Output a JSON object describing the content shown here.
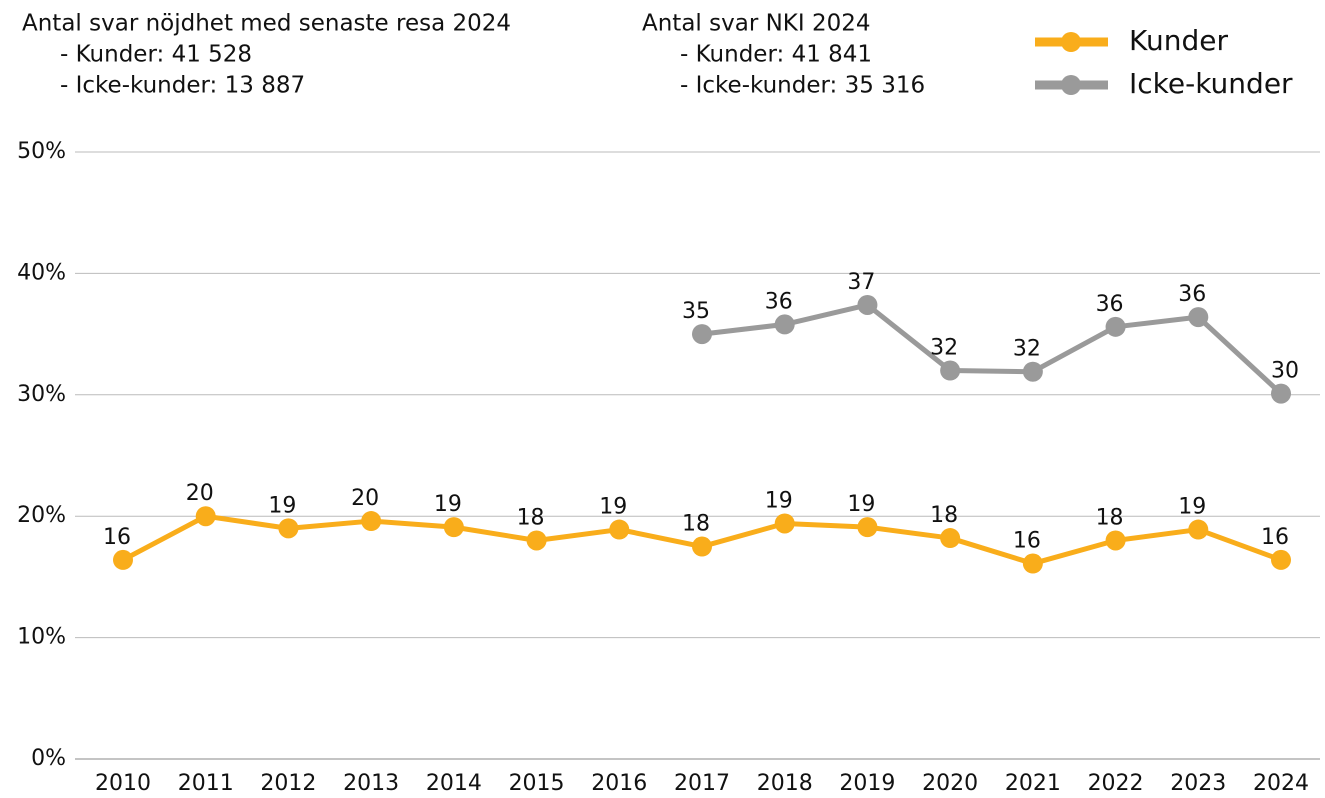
{
  "chart_data": {
    "type": "line",
    "annotations": [
      [
        "Antal svar nöjdhet med senaste resa 2024",
        "- Kunder: 41 528",
        "- Icke-kunder: 13 887"
      ],
      [
        "Antal svar NKI 2024",
        "- Kunder: 41 841",
        "- Icke-kunder: 35 316"
      ]
    ],
    "categories": [
      "2010",
      "2011",
      "2012",
      "2013",
      "2014",
      "2015",
      "2016",
      "2017",
      "2018",
      "2019",
      "2020",
      "2021",
      "2022",
      "2023",
      "2024"
    ],
    "series": [
      {
        "name": "Kunder",
        "color": "#f9ad1b",
        "values": [
          16.4,
          20.0,
          19.0,
          19.6,
          19.1,
          18.0,
          18.9,
          17.5,
          19.4,
          19.1,
          18.2,
          16.1,
          18.0,
          18.9,
          16.4
        ],
        "value_labels": [
          "16",
          "20",
          "19",
          "20",
          "19",
          "18",
          "19",
          "18",
          "19",
          "19",
          "18",
          "16",
          "18",
          "19",
          "16"
        ]
      },
      {
        "name": "Icke-kunder",
        "color": "#9a9a9a",
        "values": [
          null,
          null,
          null,
          null,
          null,
          null,
          null,
          35.0,
          35.8,
          37.4,
          32.0,
          31.9,
          35.6,
          36.4,
          30.1
        ],
        "value_labels": [
          null,
          null,
          null,
          null,
          null,
          null,
          null,
          "35",
          "36",
          "37",
          "32",
          "32",
          "36",
          "36",
          "30"
        ]
      }
    ],
    "ylim": [
      0,
      50
    ],
    "yticks": [
      {
        "value": 0,
        "label": "0%"
      },
      {
        "value": 10,
        "label": "10%"
      },
      {
        "value": 20,
        "label": "20%"
      },
      {
        "value": 30,
        "label": "30%"
      },
      {
        "value": 40,
        "label": "40%"
      },
      {
        "value": 50,
        "label": "50%"
      }
    ],
    "grid": true,
    "legend": "top-right"
  }
}
